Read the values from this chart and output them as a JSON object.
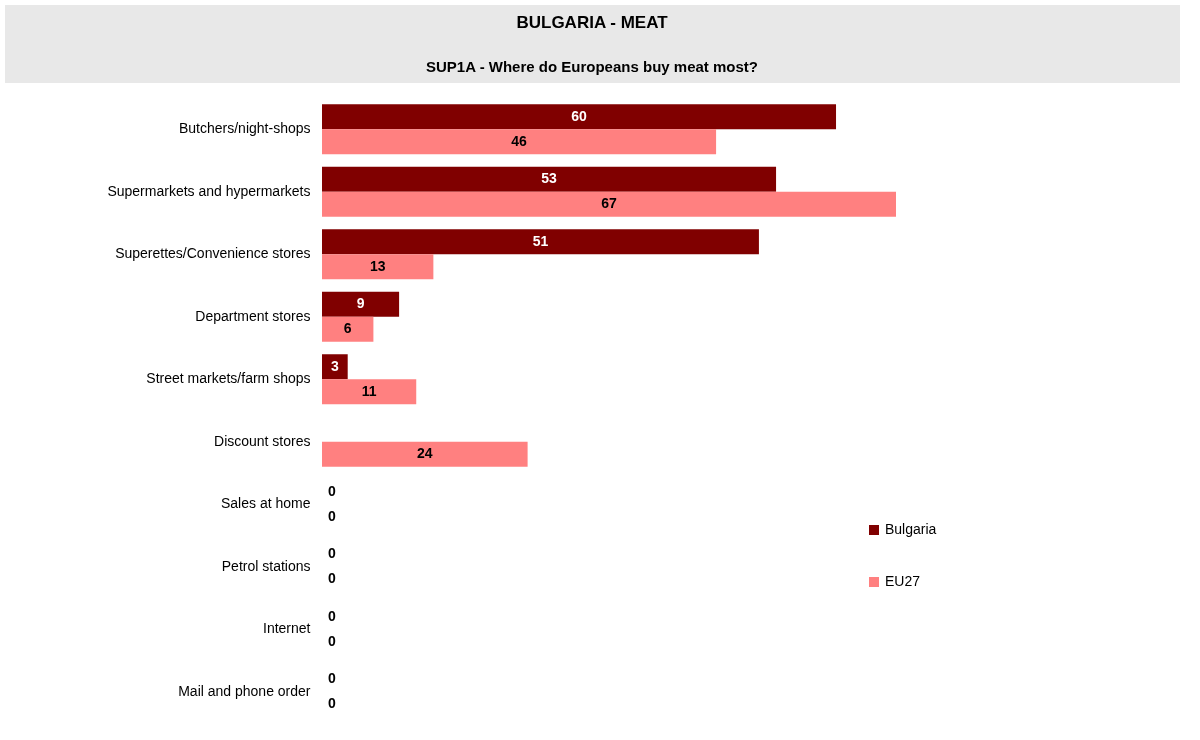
{
  "chart_data": {
    "type": "bar",
    "orientation": "horizontal",
    "title": "BULGARIA - MEAT",
    "subtitle": "SUP1A - Where do Europeans buy meat most?",
    "categories": [
      "Butchers/night-shops",
      "Supermarkets and hypermarkets",
      "Superettes/Convenience stores",
      "Department stores",
      "Street markets/farm shops",
      "Discount stores",
      "Sales at home",
      "Petrol stations",
      "Internet",
      "Mail and phone order"
    ],
    "series": [
      {
        "name": "Bulgaria",
        "color": "#800000",
        "values": [
          60,
          53,
          51,
          9,
          3,
          null,
          0,
          0,
          0,
          0
        ]
      },
      {
        "name": "EU27",
        "color": "#ff8080",
        "values": [
          46,
          67,
          13,
          6,
          11,
          24,
          0,
          0,
          0,
          0
        ]
      }
    ],
    "data_labels": true,
    "legend": "right"
  }
}
